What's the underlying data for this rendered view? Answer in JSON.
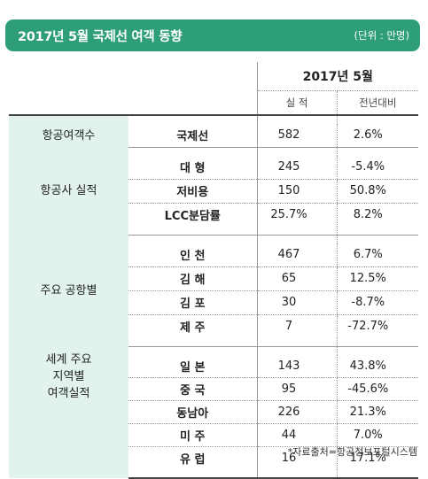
{
  "header": {
    "title": "2017년 5월 국제선 여객 동향",
    "unit": "(단위 : 만명)"
  },
  "table": {
    "period": "2017년 5월",
    "col_value": "실  적",
    "col_yoy": "전년대비",
    "groups": [
      {
        "category": "항공여객수",
        "rows": [
          {
            "label": "국제선",
            "value": "582",
            "yoy": "2.6%"
          }
        ]
      },
      {
        "category": "항공사 실적",
        "rows": [
          {
            "label": "대  형",
            "value": "245",
            "yoy": "-5.4%"
          },
          {
            "label": "저비용",
            "value": "150",
            "yoy": "50.8%"
          },
          {
            "label": "LCC분담률",
            "value": "25.7%",
            "yoy": "8.2%"
          }
        ]
      },
      {
        "category": "주요 공항별",
        "rows": [
          {
            "label": "인  천",
            "value": "467",
            "yoy": "6.7%"
          },
          {
            "label": "김  해",
            "value": "65",
            "yoy": "12.5%"
          },
          {
            "label": "김  포",
            "value": "30",
            "yoy": "-8.7%"
          },
          {
            "label": "제  주",
            "value": "7",
            "yoy": "-72.7%"
          }
        ]
      },
      {
        "category": "세계 주요 지역별 여객실적",
        "category_lines": [
          "세계 주요",
          "지역별",
          "여객실적"
        ],
        "rows": [
          {
            "label": "일  본",
            "value": "143",
            "yoy": "43.8%"
          },
          {
            "label": "중  국",
            "value": "95",
            "yoy": "-45.6%"
          },
          {
            "label": "동남아",
            "value": "226",
            "yoy": "21.3%"
          },
          {
            "label": "미  주",
            "value": "44",
            "yoy": "7.0%"
          },
          {
            "label": "유  럽",
            "value": "16",
            "yoy": "17.1%"
          }
        ]
      }
    ]
  },
  "source": "*자료출처=항공정보포털시스템"
}
